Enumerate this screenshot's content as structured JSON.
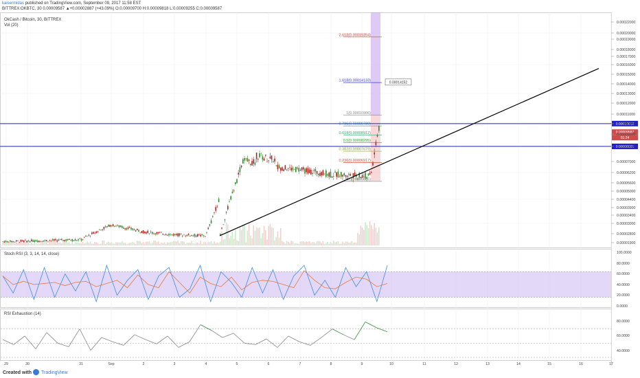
{
  "header": {
    "author": "kaisermidas",
    "published": "published on TradingView.com, September 09, 2017 11:58 EST",
    "ticker_line": "BITTREX:OKBTC, 30 0.00009587 ▲+0.00002887 (+43.09%) O:0.00009700 H:0.00009818 L:0.00009255 C:0.00009587"
  },
  "main_pane": {
    "title": "OkCash / Bitcoin, 30, BITTREX",
    "volume_label": "Vol (20)"
  },
  "stoch_pane": {
    "title": "Stoch RSI (3, 3, 14, 14, close)"
  },
  "rsi_pane": {
    "title": "RSI Exhaustion (14)"
  },
  "footer": {
    "created_with": "Created with",
    "brand": "TradingView"
  },
  "colors": {
    "up": "#2f8f2f",
    "down": "#b02222",
    "hline": "#1f1fd0",
    "trend": "#000000",
    "stoch_band": "#d8c8f5",
    "fib_top_zone": "#c9a6f0",
    "fib_bottom_zone": "#f2b8b8",
    "price_tag": "#d24a4a"
  },
  "chart_data": [
    {
      "type": "candlestick",
      "title": "OkCash / Bitcoin, 30, BITTREX",
      "x_ticks": [
        "29",
        "30",
        "31",
        "Sep",
        "2",
        "3",
        "4",
        "5",
        "6",
        "7",
        "8",
        "9",
        "10",
        "11",
        "12",
        "13",
        "14",
        "15",
        "16",
        "17"
      ],
      "y_ticks": [
        "0.00022000",
        "0.00020000",
        "0.00019000",
        "0.00018000",
        "0.00017000",
        "0.00016000",
        "0.00015000",
        "0.00014000",
        "0.00013000",
        "0.00012000",
        "0.00011000",
        "0.00010000",
        "0.00009000",
        "0.00008000",
        "0.00007000",
        "0.00006200",
        "0.00005600",
        "0.00005000",
        "0.00004400",
        "0.00003900",
        "0.00003400",
        "0.00003000",
        "0.00002800",
        "0.00002350",
        "0.00001900"
      ],
      "price_labels": [
        {
          "label": "0.00010012",
          "kind": "hline"
        },
        {
          "label": "0.00009587",
          "kind": "last"
        },
        {
          "label": "01:24",
          "kind": "timer"
        },
        {
          "label": "0.00008001",
          "kind": "hline"
        }
      ],
      "fib_levels": [
        {
          "label": "2.618(0.00019354)",
          "value": 0.00019354,
          "color": "#d33f3f"
        },
        {
          "label": "1.618(0.00014133)",
          "value": 0.00014133,
          "color": "#3b3bd4"
        },
        {
          "label": "1(0.00010906)",
          "value": 0.00010906,
          "color": "#888888"
        },
        {
          "label": "0.786(0.00009789)",
          "value": 9.789e-05,
          "color": "#3b8fd4"
        },
        {
          "label": "0.618(0.00008912)",
          "value": 8.912e-05,
          "color": "#2fa86a"
        },
        {
          "label": "0.5(0.00008295)",
          "value": 8.295e-05,
          "color": "#2fa82f"
        },
        {
          "label": "0.382(0.00007679)",
          "value": 7.679e-05,
          "color": "#88a82f"
        },
        {
          "label": "0.236(0.00006917)",
          "value": 6.917e-05,
          "color": "#d4553b"
        },
        {
          "label": "0(0.00005685)",
          "value": 5.685e-05,
          "color": "#888888"
        }
      ],
      "callout": "0.00014152",
      "horizontal_lines": [
        0.00010012,
        8.001e-05
      ],
      "trendline": "black ascending line from the Sep 4 low to upper right",
      "close_profile": [
        {
          "date": "Aug 29",
          "close": 1.95e-05
        },
        {
          "date": "Aug 31",
          "close": 2.05e-05
        },
        {
          "date": "Sep 1",
          "close": 2.85e-05
        },
        {
          "date": "Sep 2",
          "close": 2.45e-05
        },
        {
          "date": "Sep 3",
          "close": 2.3e-05
        },
        {
          "date": "Sep 4",
          "close": 2.25e-05
        },
        {
          "date": "Sep 5",
          "close": 7.2e-05
        },
        {
          "date": "Sep 6",
          "close": 6.65e-05
        },
        {
          "date": "Sep 7",
          "close": 6.4e-05
        },
        {
          "date": "Sep 8",
          "close": 6.1e-05
        },
        {
          "date": "Sep 9",
          "close": 6e-05
        },
        {
          "date": "Sep 9 (last)",
          "close": 9.587e-05
        }
      ]
    },
    {
      "type": "line",
      "title": "Stoch RSI (3, 3, 14, 14, close)",
      "y_ticks": [
        "100.0000",
        "80.0000",
        "60.0000",
        "40.0000",
        "20.0000",
        "0.0000"
      ],
      "band": [
        20,
        80
      ],
      "series": [
        {
          "values": [
            70,
            30,
            85,
            15,
            90,
            20,
            75,
            35,
            80,
            10,
            95,
            25,
            60,
            85,
            15,
            70,
            90,
            20,
            40,
            95,
            10,
            80,
            55,
            20,
            90,
            30,
            85,
            15,
            70,
            95,
            25,
            60,
            20,
            90,
            45,
            80,
            10,
            95
          ]
        }
      ]
    },
    {
      "type": "line",
      "title": "RSI Exhaustion (14)",
      "y_ticks": [
        "80.0000",
        "60.0000",
        "40.0000"
      ],
      "levels": [
        70,
        50,
        30
      ],
      "series": [
        {
          "values": [
            55,
            48,
            60,
            42,
            65,
            50,
            45,
            70,
            40,
            58,
            52,
            47,
            62,
            55,
            49,
            60,
            44,
            52,
            76,
            68,
            58,
            64,
            50,
            48,
            56,
            44,
            60,
            52,
            47,
            58,
            70,
            62,
            55,
            80,
            72,
            66
          ]
        }
      ]
    }
  ]
}
